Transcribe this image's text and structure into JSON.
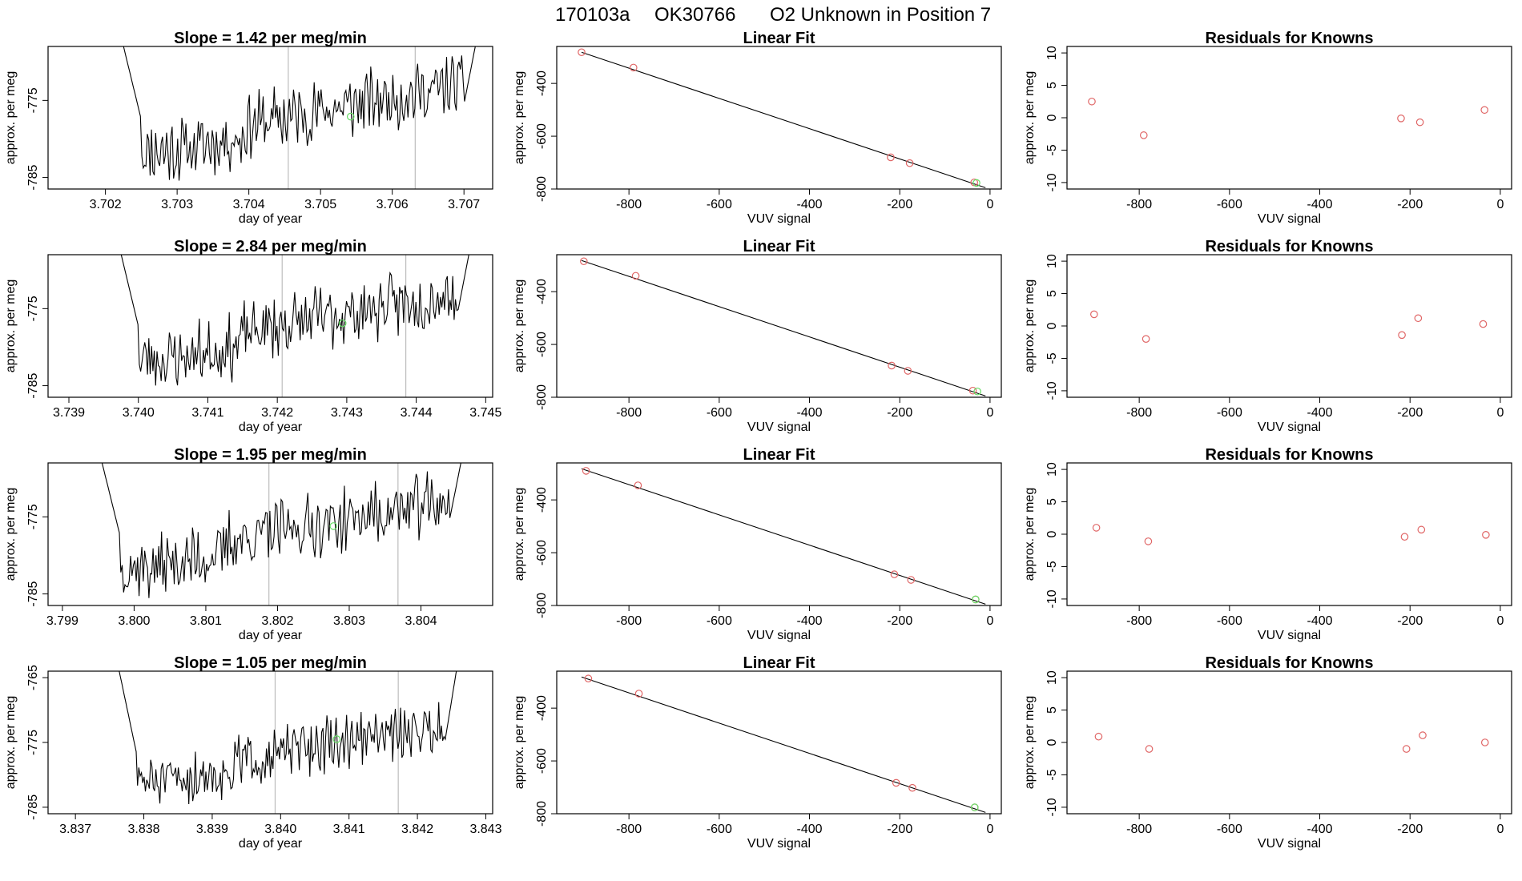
{
  "figure": {
    "title_date": "170103a",
    "title_id": "OK30766",
    "title_desc": "O2 Unknown in Position  7"
  },
  "colors": {
    "known_points": "#e06666",
    "unknown_point": "#66dd66",
    "line": "#000000",
    "vlines": "#bdbdbd"
  },
  "chart_data": [
    {
      "row": 1,
      "type": "line",
      "panel": "timeseries",
      "title": "Slope =  1.42  per meg/min",
      "xlabel": "day of year",
      "ylabel": "approx. per meg",
      "xlim": [
        3.7012,
        3.7074
      ],
      "ylim": [
        -786.5,
        -768.0
      ],
      "x_ticks": [
        "3.702",
        "3.703",
        "3.704",
        "3.705",
        "3.706",
        "3.707"
      ],
      "y_ticks": [
        "-785",
        "-775"
      ],
      "data_start": 3.7022,
      "data_end": 3.7072,
      "vlines": [
        3.70455,
        3.70632
      ],
      "unknown_point": {
        "x": 3.70542,
        "y": -777.1
      },
      "seed": 11
    },
    {
      "row": 1,
      "type": "scatter",
      "panel": "linear_fit",
      "title": "Linear Fit",
      "xlabel": "VUV signal",
      "ylabel": "approx. per meg",
      "xlim": [
        -960,
        25
      ],
      "ylim": [
        -800,
        -260
      ],
      "x_ticks": [
        "-800",
        "-600",
        "-400",
        "-200",
        "0"
      ],
      "y_ticks": [
        "-400",
        "-600",
        "-800"
      ],
      "known_points": [
        [
          -905,
          -282
        ],
        [
          -790,
          -340
        ],
        [
          -220,
          -680
        ],
        [
          -178,
          -702
        ],
        [
          -35,
          -775
        ]
      ],
      "unknown_point": [
        -30,
        -777
      ],
      "fit_line": {
        "x": [
          -905,
          -10
        ],
        "y": [
          -282,
          -795
        ]
      }
    },
    {
      "row": 1,
      "type": "scatter",
      "panel": "residuals",
      "title": "Residuals for Knowns",
      "xlabel": "VUV signal",
      "ylabel": "approx. per meg",
      "xlim": [
        -960,
        25
      ],
      "ylim": [
        -11,
        11
      ],
      "x_ticks": [
        "-800",
        "-600",
        "-400",
        "-200",
        "0"
      ],
      "y_ticks": [
        "10",
        "5",
        "0",
        "-5",
        "-10"
      ],
      "points": [
        [
          -905,
          2.5
        ],
        [
          -790,
          -2.7
        ],
        [
          -220,
          -0.1
        ],
        [
          -178,
          -0.7
        ],
        [
          -35,
          1.2
        ]
      ]
    },
    {
      "row": 2,
      "type": "line",
      "panel": "timeseries",
      "title": "Slope =  2.84  per meg/min",
      "xlabel": "day of year",
      "ylabel": "approx. per meg",
      "xlim": [
        3.7387,
        3.7451
      ],
      "ylim": [
        -786.5,
        -768.0
      ],
      "x_ticks": [
        "3.739",
        "3.740",
        "3.741",
        "3.742",
        "3.743",
        "3.744",
        "3.745"
      ],
      "y_ticks": [
        "-785",
        "-775"
      ],
      "data_start": 3.7397,
      "data_end": 3.7448,
      "vlines": [
        3.74207,
        3.74385
      ],
      "unknown_point": {
        "x": 3.74294,
        "y": -776.9
      },
      "seed": 23
    },
    {
      "row": 2,
      "type": "scatter",
      "panel": "linear_fit",
      "title": "Linear Fit",
      "xlabel": "VUV signal",
      "ylabel": "approx. per meg",
      "xlim": [
        -960,
        25
      ],
      "ylim": [
        -800,
        -260
      ],
      "x_ticks": [
        "-800",
        "-600",
        "-400",
        "-200",
        "0"
      ],
      "y_ticks": [
        "-400",
        "-600",
        "-800"
      ],
      "known_points": [
        [
          -900,
          -285
        ],
        [
          -785,
          -340
        ],
        [
          -218,
          -680
        ],
        [
          -182,
          -700
        ],
        [
          -38,
          -775
        ]
      ],
      "unknown_point": [
        -28,
        -778
      ],
      "fit_line": {
        "x": [
          -905,
          -10
        ],
        "y": [
          -282,
          -795
        ]
      }
    },
    {
      "row": 2,
      "type": "scatter",
      "panel": "residuals",
      "title": "Residuals for Knowns",
      "xlabel": "VUV signal",
      "ylabel": "approx. per meg",
      "xlim": [
        -960,
        25
      ],
      "ylim": [
        -11,
        11
      ],
      "x_ticks": [
        "-800",
        "-600",
        "-400",
        "-200",
        "0"
      ],
      "y_ticks": [
        "10",
        "5",
        "0",
        "-5",
        "-10"
      ],
      "points": [
        [
          -900,
          1.8
        ],
        [
          -785,
          -2.0
        ],
        [
          -218,
          -1.4
        ],
        [
          -182,
          1.2
        ],
        [
          -38,
          0.3
        ]
      ]
    },
    {
      "row": 3,
      "type": "line",
      "panel": "timeseries",
      "title": "Slope =  1.95  per meg/min",
      "xlabel": "day of year",
      "ylabel": "approx. per meg",
      "xlim": [
        3.7988,
        3.805
      ],
      "ylim": [
        -786.5,
        -768.0
      ],
      "x_ticks": [
        "3.799",
        "3.800",
        "3.801",
        "3.802",
        "3.803",
        "3.804"
      ],
      "y_ticks": [
        "-785",
        "-775"
      ],
      "data_start": 3.7995,
      "data_end": 3.8046,
      "vlines": [
        3.80188,
        3.80368
      ],
      "unknown_point": {
        "x": 3.80278,
        "y": -776.2
      },
      "seed": 37
    },
    {
      "row": 3,
      "type": "scatter",
      "panel": "linear_fit",
      "title": "Linear Fit",
      "xlabel": "VUV signal",
      "ylabel": "approx. per meg",
      "xlim": [
        -960,
        25
      ],
      "ylim": [
        -800,
        -260
      ],
      "x_ticks": [
        "-800",
        "-600",
        "-400",
        "-200",
        "0"
      ],
      "y_ticks": [
        "-400",
        "-600",
        "-800"
      ],
      "known_points": [
        [
          -895,
          -290
        ],
        [
          -780,
          -345
        ],
        [
          -212,
          -682
        ],
        [
          -175,
          -703
        ],
        [
          -32,
          -777
        ]
      ],
      "unknown_point": [
        -32,
        -777
      ],
      "fit_line": {
        "x": [
          -905,
          -10
        ],
        "y": [
          -282,
          -795
        ]
      }
    },
    {
      "row": 3,
      "type": "scatter",
      "panel": "residuals",
      "title": "Residuals for Knowns",
      "xlabel": "VUV signal",
      "ylabel": "approx. per meg",
      "xlim": [
        -960,
        25
      ],
      "ylim": [
        -11,
        11
      ],
      "x_ticks": [
        "-800",
        "-600",
        "-400",
        "-200",
        "0"
      ],
      "y_ticks": [
        "10",
        "5",
        "0",
        "-5",
        "-10"
      ],
      "points": [
        [
          -895,
          1.0
        ],
        [
          -780,
          -1.1
        ],
        [
          -212,
          -0.4
        ],
        [
          -175,
          0.7
        ],
        [
          -32,
          -0.1
        ]
      ]
    },
    {
      "row": 4,
      "type": "line",
      "panel": "timeseries",
      "title": "Slope =  1.05  per meg/min",
      "xlabel": "day of year",
      "ylabel": "approx. per meg",
      "xlim": [
        3.8366,
        3.8431
      ],
      "ylim": [
        -786.0,
        -764.0
      ],
      "x_ticks": [
        "3.837",
        "3.838",
        "3.839",
        "3.840",
        "3.841",
        "3.842",
        "3.843"
      ],
      "y_ticks": [
        "-765",
        "-775",
        "-785"
      ],
      "data_start": 3.8376,
      "data_end": 3.8426,
      "vlines": [
        3.83992,
        3.84172
      ],
      "unknown_point": {
        "x": 3.84082,
        "y": -774.5
      },
      "seed": 51
    },
    {
      "row": 4,
      "type": "scatter",
      "panel": "linear_fit",
      "title": "Linear Fit",
      "xlabel": "VUV signal",
      "ylabel": "approx. per meg",
      "xlim": [
        -960,
        25
      ],
      "ylim": [
        -800,
        -260
      ],
      "x_ticks": [
        "-800",
        "-600",
        "-400",
        "-200",
        "0"
      ],
      "y_ticks": [
        "-400",
        "-600",
        "-800"
      ],
      "known_points": [
        [
          -890,
          -288
        ],
        [
          -778,
          -345
        ],
        [
          -208,
          -683
        ],
        [
          -172,
          -702
        ],
        [
          -34,
          -776
        ]
      ],
      "unknown_point": [
        -34,
        -776
      ],
      "fit_line": {
        "x": [
          -905,
          -10
        ],
        "y": [
          -282,
          -795
        ]
      }
    },
    {
      "row": 4,
      "type": "scatter",
      "panel": "residuals",
      "title": "Residuals for Knowns",
      "xlabel": "VUV signal",
      "ylabel": "approx. per meg",
      "xlim": [
        -960,
        25
      ],
      "ylim": [
        -11,
        11
      ],
      "x_ticks": [
        "-800",
        "-600",
        "-400",
        "-200",
        "0"
      ],
      "y_ticks": [
        "10",
        "5",
        "0",
        "-5",
        "-10"
      ],
      "points": [
        [
          -890,
          0.9
        ],
        [
          -778,
          -1.0
        ],
        [
          -208,
          -1.0
        ],
        [
          -172,
          1.1
        ],
        [
          -34,
          0.0
        ]
      ]
    }
  ]
}
